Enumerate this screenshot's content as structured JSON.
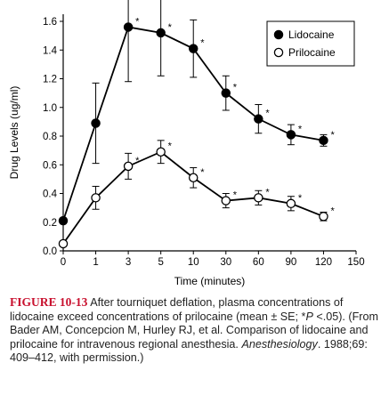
{
  "chart_data": {
    "type": "line",
    "ylabel": "Drug Levels (ug/ml)",
    "xlabel": "Time (minutes)",
    "x_ticks": [
      "0",
      "1",
      "3",
      "5",
      "10",
      "30",
      "60",
      "90",
      "120",
      "150"
    ],
    "y_ticks": [
      "0.0",
      "0.2",
      "0.4",
      "0.6",
      "0.8",
      "1.0",
      "1.2",
      "1.4",
      "1.6"
    ],
    "ylim": [
      0,
      1.6
    ],
    "x_scale": "categorical-nonlinear",
    "legend_position": "top-right",
    "significance_marker": "*",
    "series": [
      {
        "name": "Lidocaine",
        "marker": "filled-circle",
        "x": [
          "0",
          "1",
          "3",
          "5",
          "10",
          "30",
          "60",
          "90",
          "120"
        ],
        "values": [
          0.21,
          0.89,
          1.56,
          1.52,
          1.41,
          1.1,
          0.92,
          0.81,
          0.77
        ],
        "error": [
          0.0,
          0.28,
          0.38,
          0.3,
          0.2,
          0.12,
          0.1,
          0.07,
          0.04
        ],
        "significant": [
          false,
          false,
          true,
          true,
          true,
          true,
          true,
          true,
          true
        ]
      },
      {
        "name": "Prilocaine",
        "marker": "open-circle",
        "x": [
          "0",
          "1",
          "3",
          "5",
          "10",
          "30",
          "60",
          "90",
          "120"
        ],
        "values": [
          0.05,
          0.37,
          0.59,
          0.69,
          0.51,
          0.35,
          0.37,
          0.33,
          0.24
        ],
        "error": [
          0.0,
          0.08,
          0.09,
          0.08,
          0.07,
          0.05,
          0.05,
          0.05,
          0.03
        ],
        "significant": [
          false,
          false,
          true,
          true,
          true,
          true,
          true,
          true,
          true
        ]
      }
    ]
  },
  "caption": {
    "label": "FIGURE 10-13",
    "text_part1": "After tourniquet deflation, plasma concentrations of lidocaine exceed concentrations of prilocaine (mean ± SE; *",
    "p_symbol": "P",
    "text_part2": " <.05). (From Bader AM, Concepcion M, Hurley RJ, et al. Comparison of lidocaine and prilocaine for intravenous regional anesthesia. ",
    "journal": "Anesthesiology",
    "text_part3": ". 1988;69: 409–412, with permission.)"
  }
}
